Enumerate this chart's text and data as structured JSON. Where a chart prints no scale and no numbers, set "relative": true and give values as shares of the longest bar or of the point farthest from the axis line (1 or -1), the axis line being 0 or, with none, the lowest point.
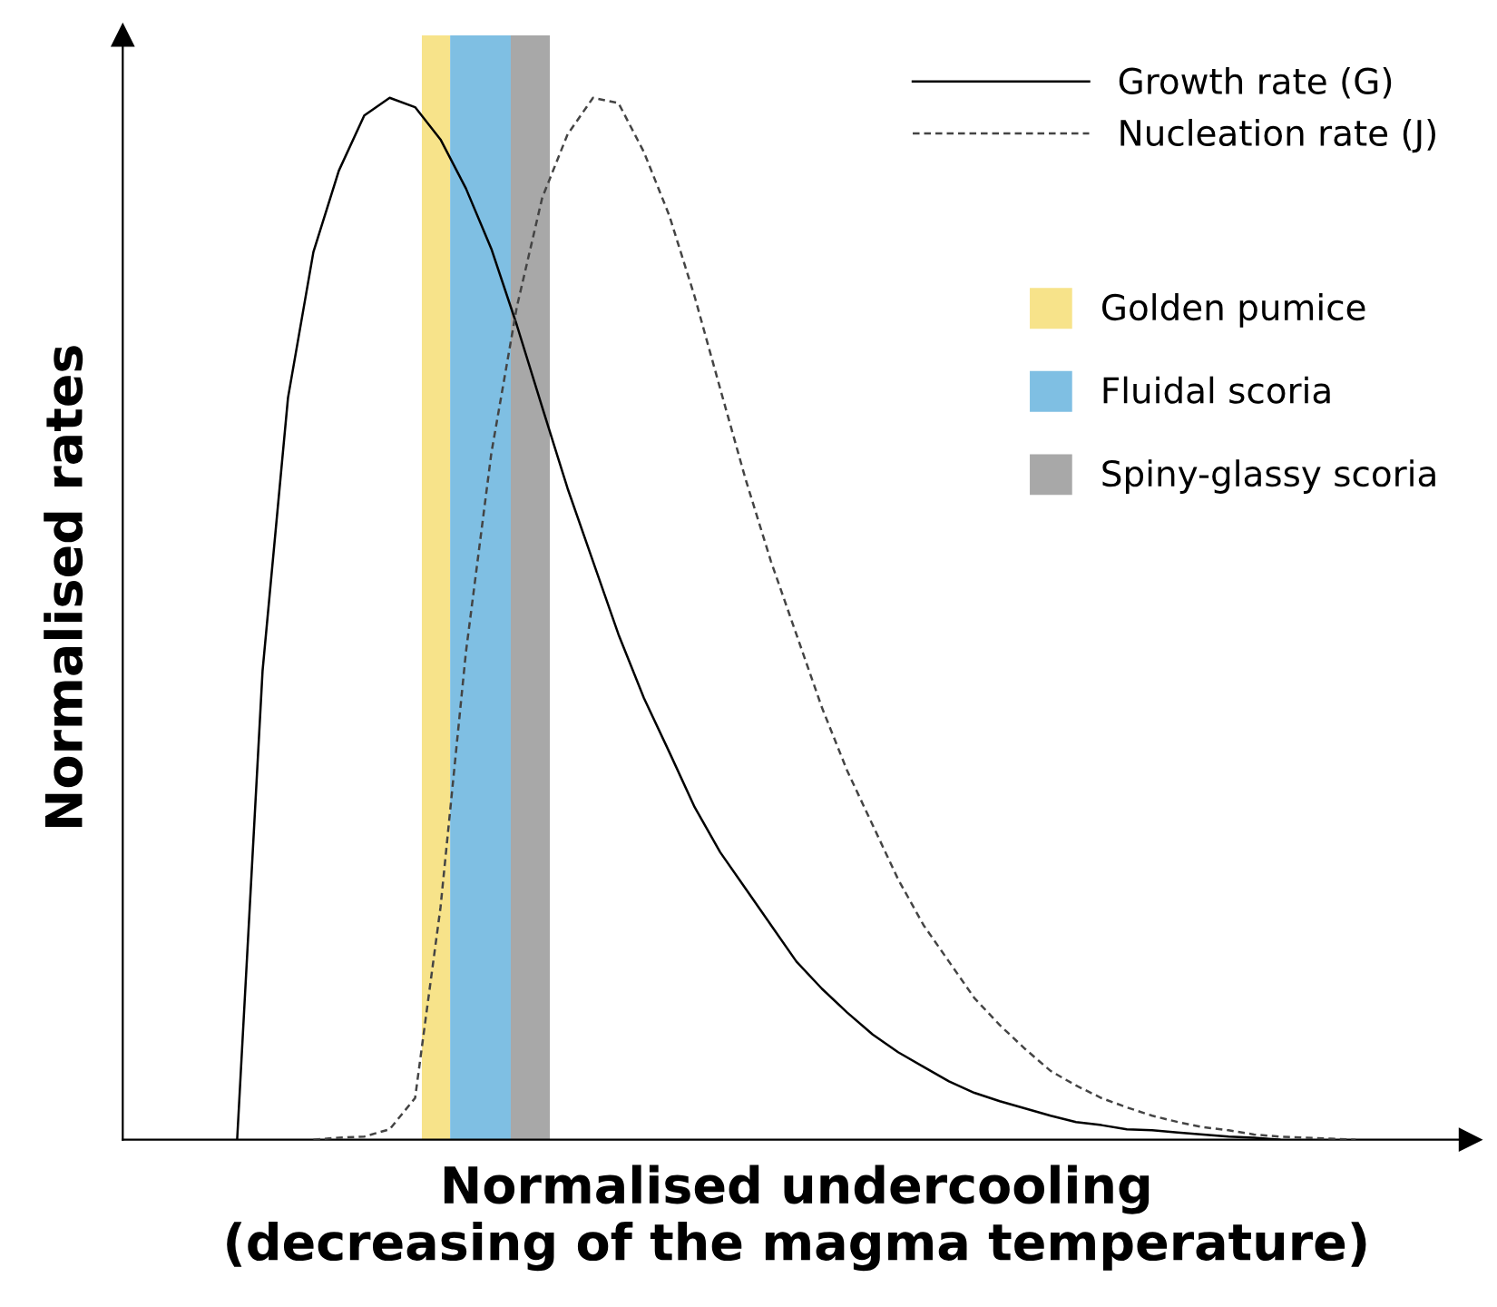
{
  "chart_data": {
    "type": "line",
    "relative": true,
    "xlabel": "Normalised undercooling\n(decreasing of the magma temperature)",
    "ylabel": "Normalised rates",
    "categories": [
      null,
      null,
      null,
      null,
      null,
      null,
      null,
      null,
      null,
      null,
      null,
      null,
      null,
      null,
      null,
      null,
      null,
      null,
      null,
      null,
      null,
      null,
      null,
      null,
      null,
      null,
      null,
      null,
      null,
      null,
      null,
      null,
      null,
      null,
      null,
      null,
      null,
      null,
      null,
      null,
      null,
      null,
      null,
      null,
      null,
      null,
      null,
      null,
      null,
      null,
      null,
      null,
      null
    ],
    "series": [
      {
        "name": "Growth rate (G)",
        "color": "#000000",
        "line_style": "solid",
        "values": [
          null,
          null,
          null,
          null,
          0,
          0.45,
          0.712,
          0.852,
          0.93,
          0.983,
          1.0,
          0.991,
          0.96,
          0.913,
          0.855,
          0.782,
          0.703,
          0.625,
          0.555,
          0.485,
          0.424,
          0.372,
          0.319,
          0.276,
          0.241,
          0.206,
          0.171,
          0.145,
          0.122,
          0.101,
          0.084,
          0.07,
          0.056,
          0.045,
          0.037,
          0.03,
          0.023,
          0.017,
          0.014,
          0.01,
          0.009,
          0.007,
          0.005,
          0.003,
          0.002,
          0,
          null,
          null,
          null,
          null,
          null,
          null,
          null
        ]
      },
      {
        "name": "Nucleation rate (J)",
        "color": "#444444",
        "line_style": "dashed",
        "values": [
          null,
          null,
          null,
          null,
          null,
          null,
          null,
          0,
          0.002,
          0.003,
          0.01,
          0.04,
          0.223,
          0.468,
          0.659,
          0.799,
          0.904,
          0.965,
          1.0,
          0.995,
          0.948,
          0.887,
          0.809,
          0.721,
          0.634,
          0.555,
          0.485,
          0.415,
          0.354,
          0.302,
          0.25,
          0.206,
          0.171,
          0.136,
          0.11,
          0.087,
          0.066,
          0.052,
          0.04,
          0.031,
          0.023,
          0.017,
          0.012,
          0.009,
          0.005,
          0.003,
          0.002,
          0.001,
          0,
          null,
          null,
          null,
          null
        ]
      }
    ],
    "annotations": [
      "Golden pumice",
      "Fluidal scoria",
      "Spiny-glassy scoria"
    ],
    "legend": "top right",
    "tick_labels": false
  }
}
